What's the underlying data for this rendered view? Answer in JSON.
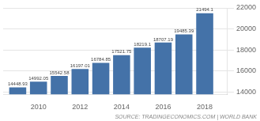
{
  "chart_data": {
    "type": "bar",
    "x": [
      2009,
      2010,
      2011,
      2012,
      2013,
      2014,
      2015,
      2016,
      2017,
      2018
    ],
    "values": [
      14448.93,
      14992.05,
      15542.58,
      16197.01,
      16784.85,
      17521.75,
      18219.1,
      18707.19,
      19485.39,
      21494.1
    ],
    "color": "#4472a8",
    "xlim": [
      2008.3,
      2019.1
    ],
    "xticks": [
      2010,
      2012,
      2014,
      2016,
      2018
    ],
    "ylim": [
      13800,
      22000
    ],
    "yticks": [
      14000,
      16000,
      18000,
      20000,
      22000
    ],
    "grid": true,
    "data_labels": true,
    "annotations": [
      "SOURCE: TRADINGECONOMICS.COM | WORLD BANK"
    ]
  }
}
